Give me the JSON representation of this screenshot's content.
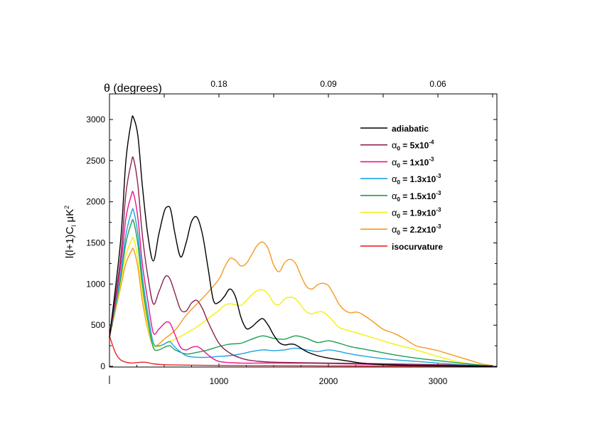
{
  "chart_data": {
    "type": "line",
    "title": "",
    "xlabel": "",
    "ylabel": "l(l+1)C_l μK²",
    "ylabel_main": "l(l+1)C",
    "ylabel_sub": "l",
    "ylabel_unit": "μK",
    "ylabel_sup": "2",
    "top_axis_label": "θ (degrees)",
    "xlim": [
      0,
      3500
    ],
    "ylim": [
      0,
      3200
    ],
    "x_ticks": [
      1000,
      2000,
      3000
    ],
    "x_tick_labels": [
      "1000",
      "2000",
      "3000"
    ],
    "y_ticks": [
      0,
      500,
      1000,
      1500,
      2000,
      2500,
      3000
    ],
    "y_tick_labels": [
      "0",
      "500",
      "1000",
      "1500",
      "2000",
      "2500",
      "3000"
    ],
    "top_ticks": [
      {
        "l": 1000,
        "label": "0.18"
      },
      {
        "l": 2000,
        "label": "0.09"
      },
      {
        "l": 3000,
        "label": "0.06"
      }
    ],
    "legend_position": "top-right",
    "series": [
      {
        "name": "adiabatic",
        "color": "#000000",
        "x": [
          0,
          100,
          150,
          200,
          220,
          260,
          300,
          350,
          400,
          450,
          500,
          530,
          560,
          600,
          650,
          700,
          750,
          800,
          850,
          900,
          950,
          1000,
          1050,
          1100,
          1150,
          1200,
          1250,
          1300,
          1350,
          1400,
          1450,
          1500,
          1550,
          1600,
          1650,
          1700,
          1800,
          1900,
          2000,
          2100,
          2200,
          2300,
          2500,
          2800,
          3100,
          3500
        ],
        "y": [
          350,
          1500,
          2500,
          2980,
          3020,
          2800,
          2200,
          1600,
          1280,
          1600,
          1880,
          1940,
          1900,
          1600,
          1330,
          1500,
          1760,
          1810,
          1600,
          1200,
          800,
          780,
          850,
          940,
          850,
          600,
          460,
          480,
          540,
          580,
          500,
          380,
          290,
          260,
          270,
          260,
          180,
          130,
          100,
          80,
          60,
          40,
          20,
          10,
          5,
          0
        ]
      },
      {
        "name": "α0 = 5x10-4",
        "name_main": "α",
        "name_sub": "0",
        "name_rest": " = 5x10",
        "name_sup": "-4",
        "color": "#8b2252",
        "x": [
          0,
          100,
          150,
          200,
          220,
          260,
          300,
          350,
          400,
          450,
          500,
          530,
          560,
          600,
          650,
          700,
          750,
          800,
          850,
          900,
          1000,
          1100,
          1200,
          1300,
          1500,
          2000,
          2500,
          3000,
          3500
        ],
        "y": [
          350,
          1300,
          2100,
          2480,
          2520,
          2200,
          1600,
          1100,
          760,
          900,
          1070,
          1100,
          1040,
          880,
          690,
          670,
          770,
          800,
          700,
          540,
          280,
          160,
          100,
          70,
          50,
          40,
          30,
          20,
          5
        ]
      },
      {
        "name": "α0 = 1x10-3",
        "name_main": "α",
        "name_sub": "0",
        "name_rest": " = 1x10",
        "name_sup": "-3",
        "color": "#e8158c",
        "x": [
          0,
          100,
          150,
          200,
          220,
          260,
          300,
          350,
          400,
          450,
          500,
          530,
          560,
          600,
          650,
          700,
          750,
          800,
          850,
          900,
          1000,
          1200,
          1500,
          2000,
          2500,
          3000,
          3500
        ],
        "y": [
          350,
          1200,
          1800,
          2080,
          2100,
          1800,
          1250,
          800,
          410,
          450,
          520,
          540,
          510,
          380,
          230,
          200,
          230,
          240,
          200,
          140,
          60,
          40,
          40,
          35,
          20,
          10,
          5
        ]
      },
      {
        "name": "α0 = 1.3x10-3",
        "name_main": "α",
        "name_sub": "0",
        "name_rest": " = 1.3x10",
        "name_sup": "-3",
        "color": "#1ba3e0",
        "x": [
          0,
          100,
          150,
          200,
          220,
          260,
          300,
          350,
          400,
          450,
          500,
          550,
          600,
          700,
          800,
          900,
          1000,
          1100,
          1200,
          1300,
          1400,
          1500,
          1600,
          1700,
          1800,
          1900,
          2000,
          2100,
          2200,
          2400,
          2600,
          2800,
          3000,
          3200,
          3400,
          3500
        ],
        "y": [
          350,
          1100,
          1600,
          1870,
          1890,
          1600,
          1100,
          650,
          290,
          250,
          270,
          300,
          230,
          130,
          110,
          110,
          120,
          130,
          150,
          180,
          200,
          190,
          200,
          220,
          200,
          180,
          200,
          180,
          150,
          110,
          80,
          60,
          40,
          20,
          10,
          5
        ]
      },
      {
        "name": "α0 = 1.5x10-3",
        "name_main": "α",
        "name_sub": "0",
        "name_rest": " = 1.5x10",
        "name_sup": "-3",
        "color": "#1aa050",
        "x": [
          0,
          100,
          150,
          200,
          220,
          260,
          300,
          350,
          400,
          450,
          500,
          550,
          600,
          700,
          800,
          900,
          1000,
          1100,
          1200,
          1300,
          1400,
          1500,
          1600,
          1700,
          1800,
          1900,
          2000,
          2100,
          2200,
          2400,
          2600,
          2800,
          3000,
          3200,
          3400,
          3500
        ],
        "y": [
          350,
          1050,
          1500,
          1740,
          1760,
          1480,
          1000,
          560,
          230,
          200,
          230,
          250,
          200,
          150,
          170,
          200,
          240,
          270,
          280,
          330,
          370,
          340,
          330,
          370,
          340,
          290,
          310,
          280,
          240,
          190,
          140,
          100,
          70,
          40,
          15,
          5
        ]
      },
      {
        "name": "α0 = 1.9x10-3",
        "name_main": "α",
        "name_sub": "0",
        "name_rest": " = 1.9x10",
        "name_sup": "-3",
        "color": "#f5f00a",
        "x": [
          0,
          100,
          150,
          200,
          220,
          260,
          300,
          350,
          400,
          450,
          500,
          600,
          700,
          800,
          900,
          1000,
          1050,
          1100,
          1150,
          1200,
          1250,
          1300,
          1350,
          1400,
          1450,
          1500,
          1550,
          1600,
          1650,
          1700,
          1750,
          1800,
          1850,
          1900,
          1950,
          2000,
          2050,
          2100,
          2200,
          2400,
          2600,
          2800,
          3000,
          3200,
          3400,
          3500
        ],
        "y": [
          350,
          1000,
          1350,
          1530,
          1550,
          1300,
          900,
          480,
          260,
          240,
          270,
          330,
          400,
          480,
          580,
          680,
          740,
          760,
          750,
          740,
          800,
          870,
          920,
          930,
          880,
          770,
          750,
          820,
          840,
          820,
          740,
          660,
          640,
          660,
          660,
          610,
          540,
          470,
          430,
          350,
          270,
          200,
          120,
          50,
          15,
          5
        ]
      },
      {
        "name": "α0 = 2.2x10-3",
        "name_main": "α",
        "name_sub": "0",
        "name_rest": " = 2.2x10",
        "name_sup": "-3",
        "color": "#f59a20",
        "x": [
          0,
          100,
          150,
          200,
          220,
          260,
          300,
          350,
          400,
          450,
          500,
          600,
          700,
          800,
          900,
          1000,
          1050,
          1100,
          1150,
          1200,
          1250,
          1300,
          1350,
          1400,
          1450,
          1500,
          1550,
          1600,
          1650,
          1700,
          1750,
          1800,
          1850,
          1900,
          1950,
          2000,
          2050,
          2100,
          2150,
          2200,
          2250,
          2300,
          2400,
          2500,
          2600,
          2700,
          2800,
          2900,
          3000,
          3100,
          3200,
          3300,
          3400,
          3500
        ],
        "y": [
          350,
          950,
          1250,
          1400,
          1420,
          1200,
          800,
          450,
          250,
          270,
          330,
          440,
          620,
          760,
          900,
          1060,
          1200,
          1310,
          1290,
          1220,
          1250,
          1360,
          1470,
          1510,
          1430,
          1230,
          1150,
          1260,
          1300,
          1250,
          1100,
          970,
          940,
          990,
          1010,
          980,
          870,
          750,
          680,
          650,
          660,
          640,
          550,
          450,
          400,
          330,
          250,
          220,
          190,
          150,
          110,
          70,
          30,
          10
        ]
      },
      {
        "name": "isocurvature",
        "color": "#e8262a",
        "x": [
          0,
          30,
          60,
          100,
          150,
          200,
          250,
          300,
          350,
          400,
          500,
          700,
          1000,
          1500,
          2000,
          3000,
          3500
        ],
        "y": [
          370,
          250,
          150,
          80,
          50,
          40,
          45,
          50,
          45,
          30,
          20,
          15,
          10,
          8,
          5,
          3,
          2
        ]
      }
    ]
  }
}
